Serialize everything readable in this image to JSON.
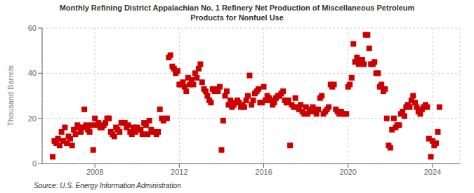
{
  "chart_data": {
    "type": "scatter",
    "title": "Monthly Refining District Appalachian No. 1 Refinery Net Production of Miscellaneous Petroleum\nProducts for Nonfuel Use",
    "y_label": "Thousand Barrels",
    "annotations": [
      "Source: U.S. Energy Information Administration"
    ],
    "color": "#cc0000",
    "marker": "square",
    "grid": true,
    "xlim": [
      2005.5,
      2025.3
    ],
    "xticks": [
      2008,
      2012,
      2016,
      2020,
      2024
    ],
    "ylim": [
      0,
      60
    ],
    "yticks": [
      0,
      20,
      40,
      60
    ],
    "x": [
      2006.0,
      2006.08,
      2006.17,
      2006.25,
      2006.33,
      2006.42,
      2006.5,
      2006.58,
      2006.67,
      2006.75,
      2006.83,
      2006.92,
      2007.0,
      2007.08,
      2007.17,
      2007.25,
      2007.33,
      2007.42,
      2007.5,
      2007.58,
      2007.67,
      2007.75,
      2007.83,
      2007.92,
      2008.0,
      2008.08,
      2008.17,
      2008.25,
      2008.33,
      2008.42,
      2008.5,
      2008.58,
      2008.67,
      2008.75,
      2008.83,
      2008.92,
      2009.0,
      2009.08,
      2009.17,
      2009.25,
      2009.33,
      2009.42,
      2009.5,
      2009.58,
      2009.67,
      2009.75,
      2009.83,
      2009.92,
      2010.0,
      2010.08,
      2010.17,
      2010.25,
      2010.33,
      2010.42,
      2010.5,
      2010.58,
      2010.67,
      2010.75,
      2010.83,
      2010.92,
      2011.0,
      2011.08,
      2011.17,
      2011.25,
      2011.42,
      2011.5,
      2011.58,
      2011.67,
      2011.75,
      2011.83,
      2011.92,
      2012.0,
      2012.08,
      2012.17,
      2012.25,
      2012.33,
      2012.42,
      2012.5,
      2012.58,
      2012.67,
      2012.75,
      2012.83,
      2012.92,
      2013.0,
      2013.08,
      2013.17,
      2013.25,
      2013.33,
      2013.42,
      2013.5,
      2013.58,
      2013.67,
      2013.75,
      2013.83,
      2013.92,
      2014.0,
      2014.08,
      2014.17,
      2014.25,
      2014.33,
      2014.42,
      2014.5,
      2014.58,
      2014.67,
      2014.75,
      2014.83,
      2014.92,
      2015.0,
      2015.08,
      2015.17,
      2015.25,
      2015.33,
      2015.42,
      2015.5,
      2015.58,
      2015.67,
      2015.75,
      2015.83,
      2015.92,
      2016.0,
      2016.08,
      2016.17,
      2016.25,
      2016.33,
      2016.42,
      2016.5,
      2016.58,
      2016.67,
      2016.75,
      2016.83,
      2016.92,
      2017.0,
      2017.08,
      2017.17,
      2017.25,
      2017.33,
      2017.42,
      2017.5,
      2017.58,
      2017.67,
      2017.75,
      2017.83,
      2017.92,
      2018.0,
      2018.08,
      2018.17,
      2018.25,
      2018.33,
      2018.42,
      2018.5,
      2018.58,
      2018.67,
      2018.75,
      2018.83,
      2018.92,
      2019.0,
      2019.08,
      2019.17,
      2019.25,
      2019.33,
      2019.42,
      2019.5,
      2019.58,
      2019.67,
      2019.75,
      2019.83,
      2019.92,
      2020.0,
      2020.08,
      2020.17,
      2020.25,
      2020.33,
      2020.42,
      2020.5,
      2020.58,
      2020.67,
      2020.75,
      2020.83,
      2020.92,
      2021.0,
      2021.08,
      2021.17,
      2021.25,
      2021.33,
      2021.42,
      2021.5,
      2021.58,
      2021.67,
      2021.75,
      2021.83,
      2021.92,
      2022.0,
      2022.08,
      2022.17,
      2022.25,
      2022.33,
      2022.42,
      2022.5,
      2022.58,
      2022.67,
      2022.75,
      2022.83,
      2022.92,
      2023.0,
      2023.08,
      2023.17,
      2023.25,
      2023.33,
      2023.42,
      2023.5,
      2023.58,
      2023.67,
      2023.75,
      2023.83,
      2023.92,
      2024.0,
      2024.08,
      2024.17,
      2024.25,
      2024.33
    ],
    "values": [
      3,
      10,
      9,
      11,
      8,
      14,
      10,
      16,
      9,
      12,
      11,
      8,
      15,
      13,
      17,
      16,
      14,
      16,
      24,
      17,
      15,
      14,
      17,
      6,
      20,
      17,
      18,
      16,
      16,
      17,
      18,
      20,
      20,
      14,
      13,
      12,
      16,
      15,
      14,
      18,
      18,
      18,
      16,
      17,
      14,
      13,
      16,
      14,
      16,
      15,
      15,
      13,
      18,
      17,
      13,
      19,
      15,
      14,
      14,
      13,
      14,
      24,
      20,
      19,
      20,
      47,
      48,
      43,
      42,
      40,
      41,
      35,
      35,
      36,
      34,
      32,
      38,
      35,
      37,
      35,
      40,
      38,
      42,
      44,
      36,
      33,
      32,
      30,
      28,
      27,
      33,
      32,
      33,
      32,
      34,
      6,
      19,
      30,
      32,
      26,
      28,
      25,
      26,
      27,
      28,
      27,
      25,
      26,
      25,
      28,
      30,
      39,
      26,
      28,
      31,
      32,
      33,
      27,
      27,
      34,
      28,
      30,
      29,
      28,
      26,
      27,
      29,
      30,
      30,
      31,
      32,
      28,
      27,
      28,
      8,
      26,
      25,
      29,
      25,
      24,
      26,
      23,
      22,
      25,
      22,
      23,
      24,
      25,
      23,
      22,
      24,
      29,
      30,
      22,
      23,
      24,
      25,
      35,
      34,
      35,
      24,
      23,
      22,
      23,
      22,
      22,
      22,
      34,
      35,
      38,
      53,
      45,
      47,
      44,
      45,
      46,
      44,
      57,
      57,
      51,
      44,
      44,
      45,
      40,
      40,
      34,
      35,
      32,
      33,
      20,
      8,
      7,
      15,
      20,
      16,
      17,
      17,
      22,
      23,
      21,
      25,
      26,
      25,
      28,
      30,
      27,
      25,
      23,
      22,
      24,
      25,
      26,
      25,
      11,
      3,
      10,
      8,
      9,
      14,
      25
    ]
  }
}
